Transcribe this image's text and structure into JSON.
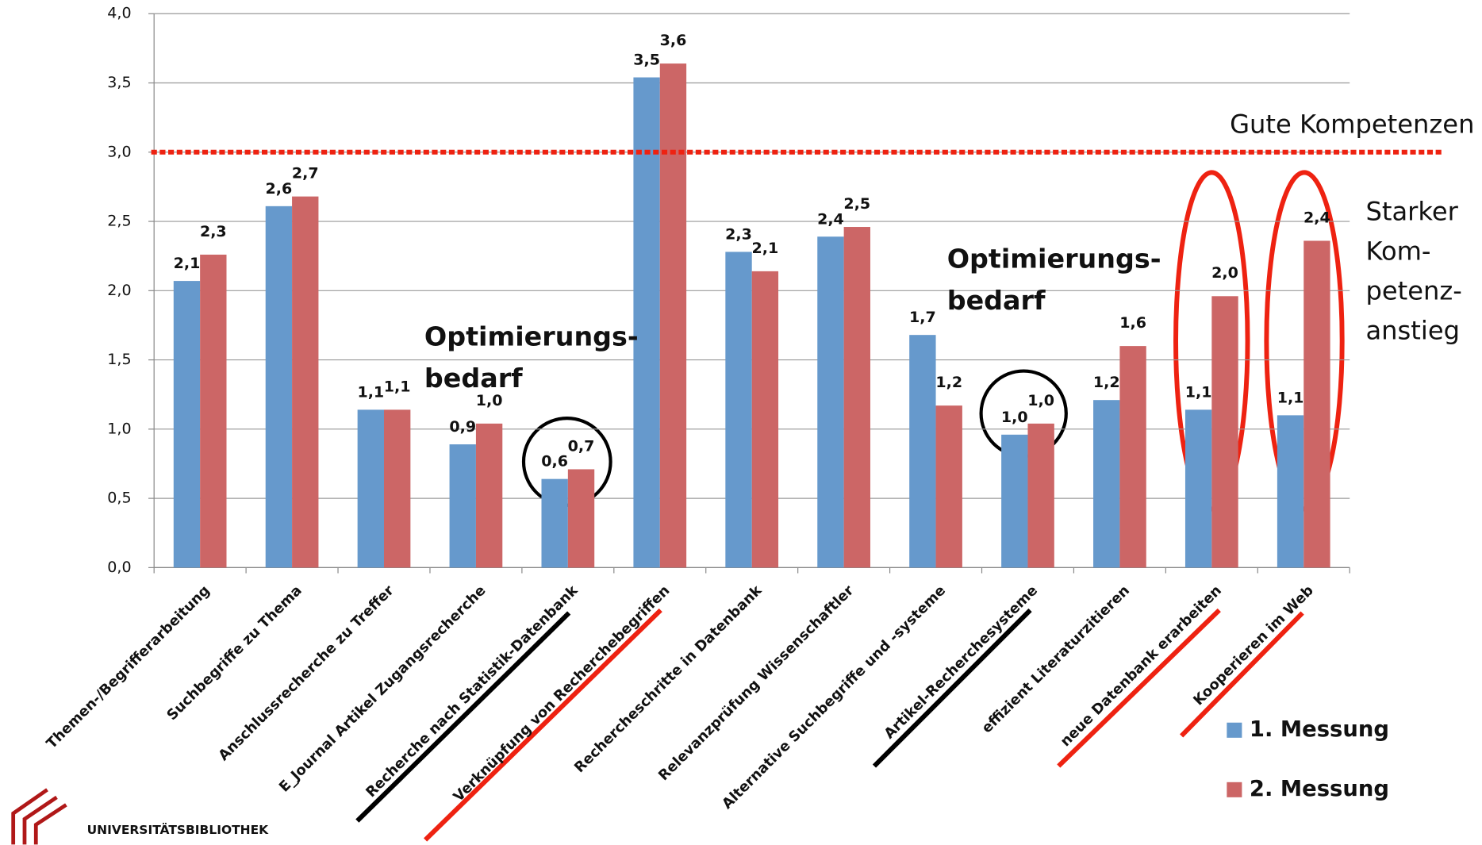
{
  "chart_data": {
    "type": "bar",
    "categories": [
      "Themen-/Begrifferarbeitung",
      "Suchbegriffe zu Thema",
      "Anschlussrecherche zu Treffer",
      "E_Journal Artikel Zugangsrecherche",
      "Recherche nach Statistik-Datenbank",
      "Verknüpfung von Recherchebegriffen",
      "Rechercheschritte in Datenbank",
      "Relevanzprüfung  Wissenschaftler",
      "Alternative Suchbegriffe und -systeme",
      "Artikel-Recherchesysteme",
      "effizient Literaturzitieren",
      "neue Datenbank erarbeiten",
      "Kooperieren im Web"
    ],
    "series": [
      {
        "name": "1. Messung",
        "color": "#6699cc",
        "values": [
          2.07,
          2.61,
          1.14,
          0.89,
          0.64,
          3.54,
          2.28,
          2.39,
          1.68,
          0.96,
          1.21,
          1.14,
          1.1
        ],
        "value_labels": [
          "2,1",
          "2,6",
          "1,1",
          "0,9",
          "0,6",
          "3,5",
          "2,3",
          "2,4",
          "1,7",
          "1,0",
          "1,2",
          "1,1",
          "1,1"
        ]
      },
      {
        "name": "2. Messung",
        "color": "#cc6666",
        "values": [
          2.26,
          2.68,
          1.14,
          1.04,
          0.71,
          3.64,
          2.14,
          2.46,
          1.17,
          1.04,
          1.6,
          1.96,
          2.36
        ],
        "value_labels": [
          "2,3",
          "2,7",
          "1,1",
          "1,0",
          "0,7",
          "3,6",
          "2,1",
          "2,5",
          "1,2",
          "1,0",
          "1,6",
          "2,0",
          "2,4"
        ]
      }
    ],
    "ylim": [
      0,
      4
    ],
    "yticks": [
      {
        "value": 0,
        "label": "0,0"
      },
      {
        "value": 0.5,
        "label": "0,5"
      },
      {
        "value": 1,
        "label": "1,0"
      },
      {
        "value": 1.5,
        "label": "1,5"
      },
      {
        "value": 2,
        "label": "2,0"
      },
      {
        "value": 2.5,
        "label": "2,5"
      },
      {
        "value": 3,
        "label": "3,0"
      },
      {
        "value": 3.5,
        "label": "3,5"
      },
      {
        "value": 4,
        "label": "4,0"
      }
    ],
    "grid": true,
    "legend": "lower right",
    "reference_line": {
      "value": 3,
      "label": "Gute Kompetenzen",
      "color": "#ee2211"
    },
    "annotations": [
      {
        "lines": [
          "Optimierungs-",
          "bedarf"
        ]
      },
      {
        "lines": [
          "Optimierungs-",
          "bedarf"
        ]
      },
      {
        "lines": [
          "Starker",
          "Kom-",
          "petenz-",
          "anstieg"
        ]
      }
    ],
    "logo": "UNIVERSITÄTSBIBLIOTHEK"
  }
}
